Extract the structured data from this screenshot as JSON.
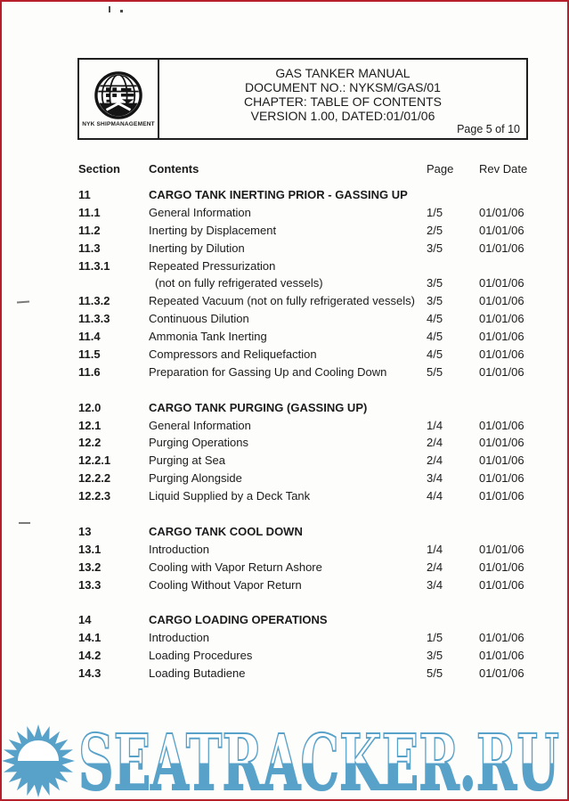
{
  "header": {
    "logo": {
      "icon": "globe-icon",
      "caption": "NYK SHIPMANAGEMENT"
    },
    "title_lines": [
      "GAS TANKER MANUAL",
      "DOCUMENT NO.: NYKSM/GAS/01",
      "CHAPTER: TABLE OF CONTENTS",
      "VERSION 1.00, DATED:01/01/06"
    ],
    "page_indicator": "Page 5 of 10"
  },
  "toc": {
    "headers": {
      "section": "Section",
      "contents": "Contents",
      "page": "Page",
      "rev_date": "Rev Date"
    },
    "sections": [
      {
        "number": "11",
        "title": "CARGO TANK INERTING PRIOR - GASSING UP",
        "rows": [
          {
            "num": "11.1",
            "text": "General Information",
            "page": "1/5",
            "date": "01/01/06"
          },
          {
            "num": "11.2",
            "text": "Inerting by Displacement",
            "page": "2/5",
            "date": "01/01/06"
          },
          {
            "num": "11.3",
            "text": "Inerting by Dilution",
            "page": "3/5",
            "date": "01/01/06"
          },
          {
            "num": "11.3.1",
            "text": "Repeated Pressurization",
            "text2": "(not on fully refrigerated vessels)",
            "page": "3/5",
            "date": "01/01/06"
          },
          {
            "num": "11.3.2",
            "text": "Repeated Vacuum (not on fully refrigerated vessels)",
            "page": "3/5",
            "date": "01/01/06"
          },
          {
            "num": "11.3.3",
            "text": "Continuous Dilution",
            "page": "4/5",
            "date": "01/01/06"
          },
          {
            "num": "11.4",
            "text": "Ammonia Tank Inerting",
            "page": "4/5",
            "date": "01/01/06"
          },
          {
            "num": "11.5",
            "text": "Compressors and Reliquefaction",
            "page": "4/5",
            "date": "01/01/06"
          },
          {
            "num": "11.6",
            "text": "Preparation for Gassing Up and Cooling Down",
            "page": "5/5",
            "date": "01/01/06"
          }
        ]
      },
      {
        "number": "12.0",
        "title": "CARGO TANK PURGING (GASSING UP)",
        "rows": [
          {
            "num": "12.1",
            "text": "General Information",
            "page": "1/4",
            "date": "01/01/06"
          },
          {
            "num": "12.2",
            "text": "Purging Operations",
            "page": "2/4",
            "date": "01/01/06"
          },
          {
            "num": "12.2.1",
            "text": "Purging at Sea",
            "page": "2/4",
            "date": "01/01/06"
          },
          {
            "num": "12.2.2",
            "text": "Purging Alongside",
            "page": "3/4",
            "date": "01/01/06"
          },
          {
            "num": "12.2.3",
            "text": "Liquid Supplied by a Deck Tank",
            "page": "4/4",
            "date": "01/01/06"
          }
        ]
      },
      {
        "number": "13",
        "title": "CARGO TANK COOL DOWN",
        "rows": [
          {
            "num": "13.1",
            "text": "Introduction",
            "page": "1/4",
            "date": "01/01/06"
          },
          {
            "num": "13.2",
            "text": "Cooling with Vapor Return Ashore",
            "page": "2/4",
            "date": "01/01/06"
          },
          {
            "num": "13.3",
            "text": "Cooling Without Vapor Return",
            "page": "3/4",
            "date": "01/01/06"
          }
        ]
      },
      {
        "number": "14",
        "title": "CARGO LOADING OPERATIONS",
        "rows": [
          {
            "num": "14.1",
            "text": "Introduction",
            "page": "1/5",
            "date": "01/01/06"
          },
          {
            "num": "14.2",
            "text": "Loading Procedures",
            "page": "3/5",
            "date": "01/01/06"
          },
          {
            "num": "14.3",
            "text": "Loading Butadiene",
            "page": "5/5",
            "date": "01/01/06"
          }
        ]
      }
    ]
  },
  "watermark": {
    "icon": "sun-icon",
    "text": "SEATRACKER.RU",
    "color": "#58a2ca"
  },
  "colors": {
    "frame_red": "#b7202a",
    "ink": "#1b1b1b",
    "watermark_blue": "#58a2ca"
  }
}
